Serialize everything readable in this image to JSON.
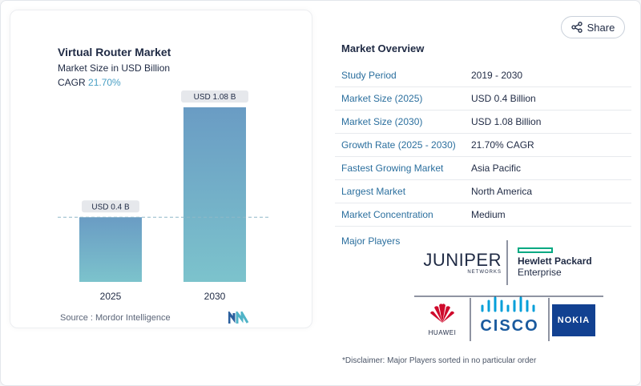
{
  "chart": {
    "title": "Virtual Router Market",
    "subtitle": "Market Size in USD Billion",
    "cagr_label": "CAGR",
    "cagr_value": "21.70%",
    "source": "Source :  Mordor Intelligence"
  },
  "chart_data": {
    "type": "bar",
    "categories": [
      "2025",
      "2030"
    ],
    "values": [
      0.4,
      1.08
    ],
    "data_labels": [
      "USD 0.4 B",
      "USD 1.08 B"
    ],
    "title": "Virtual Router Market",
    "subtitle": "Market Size in USD Billion",
    "ylim": [
      0,
      1.08
    ],
    "grid": false,
    "reference_line": 0.4,
    "colors": {
      "bar_top": "#6a9cc4",
      "bar_bottom": "#7cc3cc"
    }
  },
  "share": {
    "label": "Share"
  },
  "overview": {
    "title": "Market Overview",
    "rows": [
      {
        "key": "Study Period",
        "value": "2019 - 2030"
      },
      {
        "key": "Market Size (2025)",
        "value": "USD 0.4 Billion"
      },
      {
        "key": "Market Size (2030)",
        "value": "USD 1.08 Billion"
      },
      {
        "key": "Growth Rate (2025 - 2030)",
        "value": "21.70% CAGR"
      },
      {
        "key": "Fastest Growing Market",
        "value": "Asia Pacific"
      },
      {
        "key": "Largest Market",
        "value": "North America"
      },
      {
        "key": "Market Concentration",
        "value": "Medium"
      }
    ],
    "players_label": "Major Players",
    "players": {
      "juniper": {
        "name": "JUNIPER",
        "sub": "NETWORKS"
      },
      "hpe": {
        "line1": "Hewlett Packard",
        "line2": "Enterprise"
      },
      "huawei": {
        "name": "HUAWEI"
      },
      "cisco": {
        "name": "CISCO"
      },
      "nokia": {
        "name": "NOKIA"
      }
    },
    "disclaimer": "*Disclaimer: Major Players sorted in no particular order"
  },
  "icons": {
    "share": "share-icon",
    "logo": "mordor-logo-icon"
  }
}
